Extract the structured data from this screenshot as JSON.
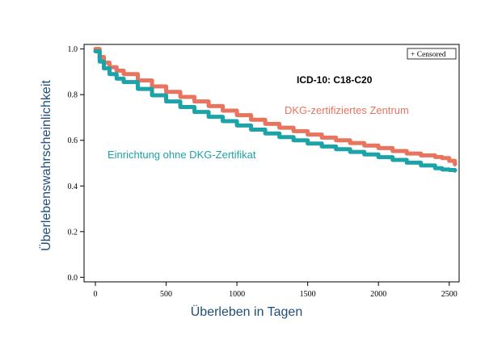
{
  "chart_data": {
    "type": "line",
    "title": "",
    "xlabel": "Überleben in Tagen",
    "ylabel": "Überlebenswahrscheinlichkeit",
    "xlim": [
      -80,
      2570
    ],
    "ylim": [
      -0.02,
      1.02
    ],
    "x_ticks": [
      0,
      500,
      1000,
      1500,
      2000,
      2500
    ],
    "y_ticks": [
      0.0,
      0.2,
      0.4,
      0.6,
      0.8,
      1.0
    ],
    "y_tick_labels": [
      "0.0",
      "0.2",
      "0.4",
      "0.6",
      "0.8",
      "1.0"
    ],
    "grid": false,
    "legend": {
      "placement": "top-right",
      "entries": [
        "+ Censored"
      ]
    },
    "annotations": {
      "header": "ICD-10:  C18-C20",
      "series_label_certified": "DKG-zertifiziertes Zentrum",
      "series_label_uncertified": "Einrichtung ohne DKG-Zertifikat"
    },
    "series": [
      {
        "key": "certified",
        "color": "#E8735F",
        "x": [
          0,
          30,
          60,
          100,
          150,
          200,
          300,
          400,
          500,
          600,
          700,
          800,
          900,
          1000,
          1100,
          1200,
          1300,
          1400,
          1500,
          1600,
          1700,
          1800,
          1900,
          2000,
          2100,
          2200,
          2300,
          2400,
          2450,
          2500,
          2540
        ],
        "y": [
          1.0,
          0.965,
          0.94,
          0.92,
          0.905,
          0.89,
          0.862,
          0.836,
          0.812,
          0.79,
          0.77,
          0.75,
          0.73,
          0.71,
          0.69,
          0.672,
          0.655,
          0.64,
          0.625,
          0.612,
          0.6,
          0.588,
          0.577,
          0.566,
          0.553,
          0.542,
          0.534,
          0.527,
          0.522,
          0.51,
          0.495
        ]
      },
      {
        "key": "uncertified",
        "color": "#1BA3A8",
        "x": [
          0,
          30,
          60,
          100,
          150,
          200,
          300,
          400,
          500,
          600,
          700,
          800,
          900,
          1000,
          1100,
          1200,
          1300,
          1400,
          1500,
          1600,
          1700,
          1800,
          1900,
          2000,
          2100,
          2200,
          2300,
          2400,
          2450,
          2500,
          2540
        ],
        "y": [
          0.99,
          0.945,
          0.915,
          0.89,
          0.87,
          0.855,
          0.825,
          0.797,
          0.77,
          0.746,
          0.724,
          0.703,
          0.684,
          0.665,
          0.647,
          0.63,
          0.614,
          0.6,
          0.586,
          0.573,
          0.561,
          0.549,
          0.538,
          0.526,
          0.514,
          0.502,
          0.49,
          0.478,
          0.472,
          0.47,
          0.468
        ]
      }
    ]
  }
}
